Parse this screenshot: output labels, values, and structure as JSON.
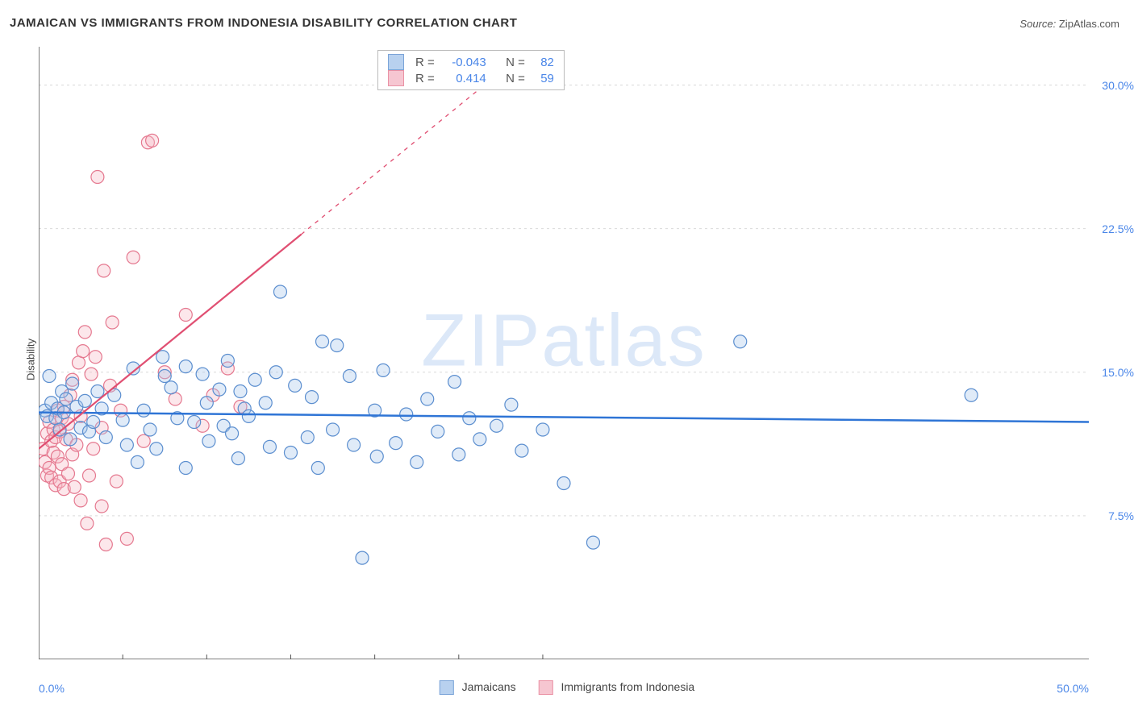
{
  "title": "JAMAICAN VS IMMIGRANTS FROM INDONESIA DISABILITY CORRELATION CHART",
  "source_label": "Source:",
  "source_value": "ZipAtlas.com",
  "watermark": "ZIPatlas",
  "y_axis_label": "Disability",
  "chart": {
    "type": "scatter",
    "background_color": "#ffffff",
    "gridline_color": "#d9d9d9",
    "axis_color": "#555555",
    "xlim": [
      0,
      50
    ],
    "ylim": [
      0,
      32
    ],
    "x_origin_label": "0.0%",
    "x_max_label": "50.0%",
    "x_ticks": [
      4,
      8,
      12,
      16,
      20,
      24
    ],
    "y_ticks": [
      {
        "value": 7.5,
        "label": "7.5%"
      },
      {
        "value": 15.0,
        "label": "15.0%"
      },
      {
        "value": 22.5,
        "label": "22.5%"
      },
      {
        "value": 30.0,
        "label": "30.0%"
      }
    ],
    "marker_radius": 8,
    "marker_stroke_width": 1.2,
    "marker_fill_opacity": 0.35,
    "series": [
      {
        "name": "Jamaicans",
        "color_stroke": "#5b8ecf",
        "color_fill": "#a7c6ec",
        "trend": {
          "x1": 0,
          "y1": 12.9,
          "x2": 50,
          "y2": 12.4,
          "dashed_after_x": 50,
          "stroke": "#2f75d6",
          "width": 2.5
        },
        "stats": {
          "R": "-0.043",
          "N": "82"
        },
        "points": [
          [
            0.3,
            13.0
          ],
          [
            0.4,
            12.7
          ],
          [
            0.5,
            14.8
          ],
          [
            0.6,
            13.4
          ],
          [
            0.8,
            12.6
          ],
          [
            0.9,
            13.1
          ],
          [
            1.0,
            12.0
          ],
          [
            1.1,
            14.0
          ],
          [
            1.2,
            12.9
          ],
          [
            1.3,
            13.6
          ],
          [
            1.5,
            11.5
          ],
          [
            1.6,
            14.4
          ],
          [
            1.8,
            13.2
          ],
          [
            2.0,
            12.1
          ],
          [
            2.2,
            13.5
          ],
          [
            2.4,
            11.9
          ],
          [
            2.6,
            12.4
          ],
          [
            2.8,
            14.0
          ],
          [
            3.0,
            13.1
          ],
          [
            3.2,
            11.6
          ],
          [
            3.6,
            13.8
          ],
          [
            4.0,
            12.5
          ],
          [
            4.2,
            11.2
          ],
          [
            4.5,
            15.2
          ],
          [
            4.7,
            10.3
          ],
          [
            5.0,
            13.0
          ],
          [
            5.3,
            12.0
          ],
          [
            5.6,
            11.0
          ],
          [
            5.9,
            15.8
          ],
          [
            6.3,
            14.2
          ],
          [
            6.6,
            12.6
          ],
          [
            7.0,
            10.0
          ],
          [
            7.0,
            15.3
          ],
          [
            7.4,
            12.4
          ],
          [
            7.8,
            14.9
          ],
          [
            8.0,
            13.4
          ],
          [
            8.1,
            11.4
          ],
          [
            8.6,
            14.1
          ],
          [
            8.8,
            12.2
          ],
          [
            9.0,
            15.6
          ],
          [
            9.2,
            11.8
          ],
          [
            9.5,
            10.5
          ],
          [
            9.8,
            13.1
          ],
          [
            10.0,
            12.7
          ],
          [
            10.3,
            14.6
          ],
          [
            10.8,
            13.4
          ],
          [
            11.0,
            11.1
          ],
          [
            11.3,
            15.0
          ],
          [
            11.5,
            19.2
          ],
          [
            12.0,
            10.8
          ],
          [
            12.2,
            14.3
          ],
          [
            12.8,
            11.6
          ],
          [
            13.0,
            13.7
          ],
          [
            13.3,
            10.0
          ],
          [
            13.5,
            16.6
          ],
          [
            14.0,
            12.0
          ],
          [
            14.2,
            16.4
          ],
          [
            14.8,
            14.8
          ],
          [
            15.0,
            11.2
          ],
          [
            15.4,
            5.3
          ],
          [
            16.0,
            13.0
          ],
          [
            16.1,
            10.6
          ],
          [
            16.4,
            15.1
          ],
          [
            17.0,
            11.3
          ],
          [
            17.5,
            12.8
          ],
          [
            18.0,
            10.3
          ],
          [
            18.5,
            13.6
          ],
          [
            19.0,
            11.9
          ],
          [
            19.8,
            14.5
          ],
          [
            20.0,
            10.7
          ],
          [
            20.5,
            12.6
          ],
          [
            21.0,
            11.5
          ],
          [
            21.8,
            12.2
          ],
          [
            22.5,
            13.3
          ],
          [
            23.0,
            10.9
          ],
          [
            24.0,
            12.0
          ],
          [
            25.0,
            9.2
          ],
          [
            26.4,
            6.1
          ],
          [
            33.4,
            16.6
          ],
          [
            44.4,
            13.8
          ],
          [
            6.0,
            14.8
          ],
          [
            9.6,
            14.0
          ]
        ]
      },
      {
        "name": "Immigrants from Indonesia",
        "color_stroke": "#e5788f",
        "color_fill": "#f5b9c6",
        "trend": {
          "x1": 0,
          "y1": 11.0,
          "x2": 12.5,
          "y2": 22.2,
          "dashed_after_x": 12.5,
          "dashed_x2": 22,
          "dashed_y2": 30.7,
          "stroke": "#e04f72",
          "width": 2.2
        },
        "stats": {
          "R": "0.414",
          "N": "59"
        },
        "points": [
          [
            0.2,
            11.0
          ],
          [
            0.3,
            10.3
          ],
          [
            0.4,
            11.8
          ],
          [
            0.4,
            9.6
          ],
          [
            0.5,
            12.4
          ],
          [
            0.5,
            10.0
          ],
          [
            0.6,
            11.4
          ],
          [
            0.6,
            9.5
          ],
          [
            0.7,
            10.8
          ],
          [
            0.7,
            12.0
          ],
          [
            0.8,
            9.1
          ],
          [
            0.8,
            11.6
          ],
          [
            0.9,
            10.6
          ],
          [
            0.9,
            13.0
          ],
          [
            1.0,
            9.3
          ],
          [
            1.0,
            11.9
          ],
          [
            1.1,
            12.6
          ],
          [
            1.1,
            10.2
          ],
          [
            1.2,
            13.2
          ],
          [
            1.2,
            8.9
          ],
          [
            1.3,
            11.5
          ],
          [
            1.4,
            12.3
          ],
          [
            1.4,
            9.7
          ],
          [
            1.5,
            13.8
          ],
          [
            1.6,
            10.7
          ],
          [
            1.6,
            14.6
          ],
          [
            1.7,
            9.0
          ],
          [
            1.8,
            11.2
          ],
          [
            1.9,
            15.5
          ],
          [
            2.0,
            8.3
          ],
          [
            2.0,
            12.7
          ],
          [
            2.1,
            16.1
          ],
          [
            2.2,
            17.1
          ],
          [
            2.3,
            7.1
          ],
          [
            2.4,
            9.6
          ],
          [
            2.5,
            14.9
          ],
          [
            2.6,
            11.0
          ],
          [
            2.7,
            15.8
          ],
          [
            2.8,
            25.2
          ],
          [
            3.0,
            8.0
          ],
          [
            3.0,
            12.1
          ],
          [
            3.1,
            20.3
          ],
          [
            3.2,
            6.0
          ],
          [
            3.4,
            14.3
          ],
          [
            3.5,
            17.6
          ],
          [
            3.7,
            9.3
          ],
          [
            3.9,
            13.0
          ],
          [
            4.2,
            6.3
          ],
          [
            4.5,
            21.0
          ],
          [
            5.0,
            11.4
          ],
          [
            5.2,
            27.0
          ],
          [
            5.4,
            27.1
          ],
          [
            6.0,
            15.0
          ],
          [
            6.5,
            13.6
          ],
          [
            7.0,
            18.0
          ],
          [
            7.8,
            12.2
          ],
          [
            8.3,
            13.8
          ],
          [
            9.0,
            15.2
          ],
          [
            9.6,
            13.2
          ]
        ]
      }
    ]
  },
  "stats_box": {
    "r_label": "R =",
    "n_label": "N ="
  },
  "legend": {
    "series1_label": "Jamaicans",
    "series2_label": "Immigrants from Indonesia"
  }
}
